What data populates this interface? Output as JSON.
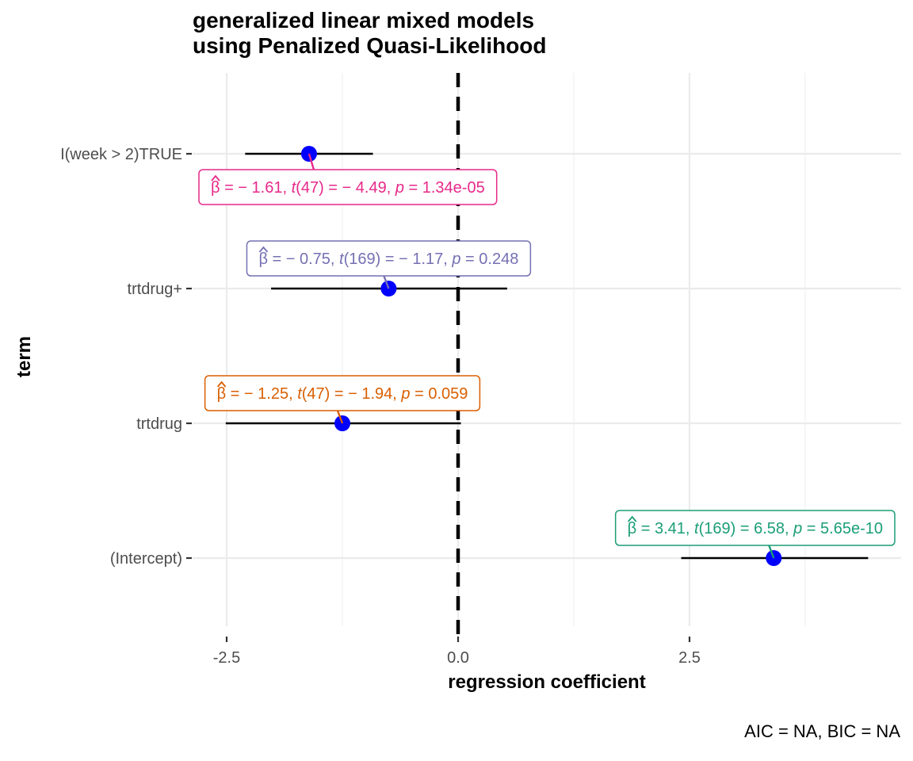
{
  "chart_data": {
    "type": "scatter",
    "title": "generalized linear mixed models",
    "subtitle": "using Penalized Quasi-Likelihood",
    "xlabel": "regression coefficient",
    "ylabel": "term",
    "caption": "AIC = NA, BIC = NA",
    "xlim": [
      -2.5,
      4.7
    ],
    "xticks": [
      -2.5,
      0.0,
      2.5
    ],
    "xtick_labels": [
      "-2.5",
      "0.0",
      "2.5"
    ],
    "reference_line": 0,
    "grid": true,
    "point_color": "#0000ff",
    "terms": [
      {
        "name": "(Intercept)",
        "estimate": 3.41,
        "conf_low": 2.41,
        "conf_high": 4.43,
        "label_color": "#1b9e77",
        "label": {
          "beta": "3.41",
          "df": "169",
          "t": "6.58",
          "p": "5.65e-10"
        }
      },
      {
        "name": "trtdrug",
        "estimate": -1.25,
        "conf_low": -2.51,
        "conf_high": 0.03,
        "label_color": "#d95f02",
        "label": {
          "beta": "− 1.25",
          "df": "47",
          "t": "− 1.94",
          "p": "0.059"
        }
      },
      {
        "name": "trtdrug+",
        "estimate": -0.75,
        "conf_low": -2.02,
        "conf_high": 0.53,
        "label_color": "#7570b3",
        "label": {
          "beta": "− 0.75",
          "df": "169",
          "t": "− 1.17",
          "p": "0.248"
        }
      },
      {
        "name": "I(week > 2)TRUE",
        "estimate": -1.61,
        "conf_low": -2.3,
        "conf_high": -0.92,
        "label_color": "#e7298a",
        "label": {
          "beta": "− 1.61",
          "df": "47",
          "t": "− 4.49",
          "p": "1.34e-05"
        }
      }
    ]
  }
}
